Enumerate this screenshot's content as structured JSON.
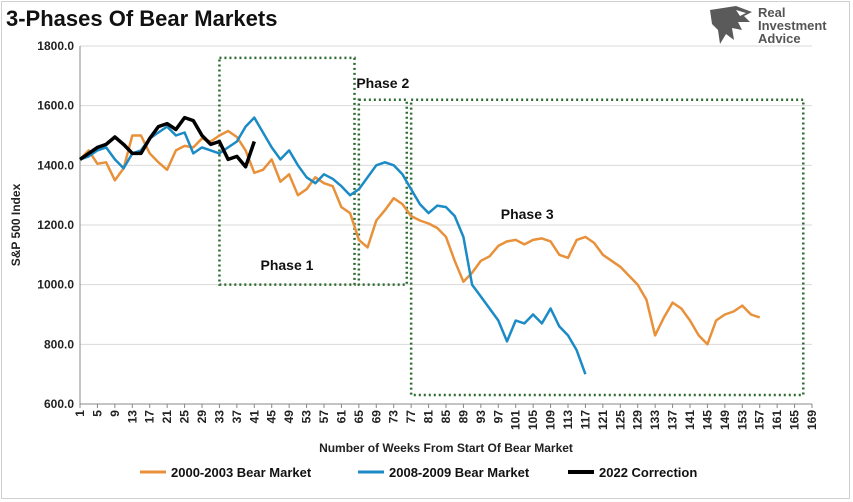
{
  "header": {
    "title": "3-Phases Of Bear Markets"
  },
  "logo": {
    "line1": "Real",
    "line2": "Investment",
    "line3": "Advice"
  },
  "chart_data": {
    "type": "line",
    "title": "3-Phases Of Bear Markets",
    "xlabel": "Number of Weeks From Start Of Bear Market",
    "ylabel": "S&P 500 Index",
    "xlim": [
      1,
      169
    ],
    "ylim": [
      600,
      1800
    ],
    "yticks": [
      600,
      800,
      1000,
      1200,
      1400,
      1600,
      1800
    ],
    "ytick_labels": [
      "600.0",
      "800.0",
      "1000.0",
      "1200.0",
      "1400.0",
      "1600.0",
      "1800.0"
    ],
    "xticks": [
      1,
      5,
      9,
      13,
      17,
      21,
      25,
      29,
      33,
      37,
      41,
      45,
      49,
      53,
      57,
      61,
      65,
      69,
      73,
      77,
      81,
      85,
      89,
      93,
      97,
      101,
      105,
      109,
      113,
      117,
      121,
      125,
      129,
      133,
      137,
      141,
      145,
      149,
      153,
      157,
      161,
      165,
      169
    ],
    "grid": "horizontal",
    "legend": "bottom",
    "series": [
      {
        "name": "2000-2003 Bear Market",
        "color": "#E8913A",
        "points": [
          [
            1,
            1420
          ],
          [
            3,
            1450
          ],
          [
            5,
            1405
          ],
          [
            7,
            1410
          ],
          [
            9,
            1350
          ],
          [
            11,
            1390
          ],
          [
            13,
            1500
          ],
          [
            15,
            1500
          ],
          [
            17,
            1440
          ],
          [
            19,
            1410
          ],
          [
            21,
            1385
          ],
          [
            23,
            1450
          ],
          [
            25,
            1465
          ],
          [
            27,
            1460
          ],
          [
            29,
            1490
          ],
          [
            31,
            1480
          ],
          [
            33,
            1500
          ],
          [
            35,
            1515
          ],
          [
            37,
            1495
          ],
          [
            39,
            1450
          ],
          [
            41,
            1375
          ],
          [
            43,
            1385
          ],
          [
            45,
            1420
          ],
          [
            47,
            1345
          ],
          [
            49,
            1370
          ],
          [
            51,
            1300
          ],
          [
            53,
            1320
          ],
          [
            55,
            1360
          ],
          [
            57,
            1340
          ],
          [
            59,
            1330
          ],
          [
            61,
            1260
          ],
          [
            63,
            1240
          ],
          [
            65,
            1150
          ],
          [
            67,
            1125
          ],
          [
            69,
            1215
          ],
          [
            71,
            1250
          ],
          [
            73,
            1290
          ],
          [
            75,
            1270
          ],
          [
            77,
            1230
          ],
          [
            79,
            1215
          ],
          [
            81,
            1205
          ],
          [
            83,
            1190
          ],
          [
            85,
            1160
          ],
          [
            87,
            1080
          ],
          [
            89,
            1010
          ],
          [
            91,
            1040
          ],
          [
            93,
            1080
          ],
          [
            95,
            1095
          ],
          [
            97,
            1130
          ],
          [
            99,
            1145
          ],
          [
            101,
            1150
          ],
          [
            103,
            1135
          ],
          [
            105,
            1150
          ],
          [
            107,
            1155
          ],
          [
            109,
            1145
          ],
          [
            111,
            1100
          ],
          [
            113,
            1090
          ],
          [
            115,
            1150
          ],
          [
            117,
            1160
          ],
          [
            119,
            1140
          ],
          [
            121,
            1100
          ],
          [
            123,
            1080
          ],
          [
            125,
            1060
          ],
          [
            127,
            1030
          ],
          [
            129,
            1000
          ],
          [
            131,
            950
          ],
          [
            133,
            830
          ],
          [
            135,
            890
          ],
          [
            137,
            940
          ],
          [
            139,
            920
          ],
          [
            141,
            880
          ],
          [
            143,
            830
          ],
          [
            145,
            800
          ],
          [
            147,
            880
          ],
          [
            149,
            900
          ],
          [
            151,
            910
          ],
          [
            153,
            930
          ],
          [
            155,
            900
          ],
          [
            157,
            890
          ]
        ]
      },
      {
        "name": "2008-2009 Bear Market",
        "color": "#1B8BC6",
        "points": [
          [
            1,
            1420
          ],
          [
            3,
            1430
          ],
          [
            5,
            1450
          ],
          [
            7,
            1460
          ],
          [
            9,
            1420
          ],
          [
            11,
            1390
          ],
          [
            13,
            1440
          ],
          [
            15,
            1450
          ],
          [
            17,
            1490
          ],
          [
            19,
            1510
          ],
          [
            21,
            1530
          ],
          [
            23,
            1500
          ],
          [
            25,
            1510
          ],
          [
            27,
            1440
          ],
          [
            29,
            1460
          ],
          [
            31,
            1450
          ],
          [
            33,
            1440
          ],
          [
            35,
            1460
          ],
          [
            37,
            1480
          ],
          [
            39,
            1530
          ],
          [
            41,
            1560
          ],
          [
            43,
            1510
          ],
          [
            45,
            1460
          ],
          [
            47,
            1420
          ],
          [
            49,
            1450
          ],
          [
            51,
            1400
          ],
          [
            53,
            1360
          ],
          [
            55,
            1340
          ],
          [
            57,
            1370
          ],
          [
            59,
            1355
          ],
          [
            61,
            1330
          ],
          [
            63,
            1300
          ],
          [
            65,
            1320
          ],
          [
            67,
            1360
          ],
          [
            69,
            1400
          ],
          [
            71,
            1410
          ],
          [
            73,
            1400
          ],
          [
            75,
            1370
          ],
          [
            77,
            1320
          ],
          [
            79,
            1270
          ],
          [
            81,
            1240
          ],
          [
            83,
            1265
          ],
          [
            85,
            1260
          ],
          [
            87,
            1230
          ],
          [
            89,
            1160
          ],
          [
            91,
            1000
          ],
          [
            93,
            960
          ],
          [
            95,
            920
          ],
          [
            97,
            880
          ],
          [
            99,
            810
          ],
          [
            101,
            880
          ],
          [
            103,
            870
          ],
          [
            105,
            900
          ],
          [
            107,
            870
          ],
          [
            109,
            920
          ],
          [
            111,
            860
          ],
          [
            113,
            830
          ],
          [
            115,
            780
          ],
          [
            117,
            700
          ]
        ]
      },
      {
        "name": "2022 Correction",
        "color": "#000000",
        "points": [
          [
            1,
            1420
          ],
          [
            3,
            1440
          ],
          [
            5,
            1460
          ],
          [
            7,
            1470
          ],
          [
            9,
            1495
          ],
          [
            11,
            1470
          ],
          [
            13,
            1440
          ],
          [
            15,
            1440
          ],
          [
            17,
            1490
          ],
          [
            19,
            1530
          ],
          [
            21,
            1540
          ],
          [
            23,
            1520
          ],
          [
            25,
            1560
          ],
          [
            27,
            1550
          ],
          [
            29,
            1500
          ],
          [
            31,
            1470
          ],
          [
            33,
            1480
          ],
          [
            35,
            1420
          ],
          [
            37,
            1430
          ],
          [
            39,
            1395
          ],
          [
            41,
            1480
          ]
        ]
      }
    ],
    "annotations": [
      {
        "text": "Phase 1",
        "x0": 33,
        "x1": 64,
        "y0": 1000,
        "y1": 1760
      },
      {
        "text": "Phase 2",
        "x0": 65,
        "x1": 76,
        "y0": 1000,
        "y1": 1620
      },
      {
        "text": "Phase 3",
        "x0": 77,
        "x1": 167,
        "y0": 630,
        "y1": 1620
      }
    ]
  }
}
